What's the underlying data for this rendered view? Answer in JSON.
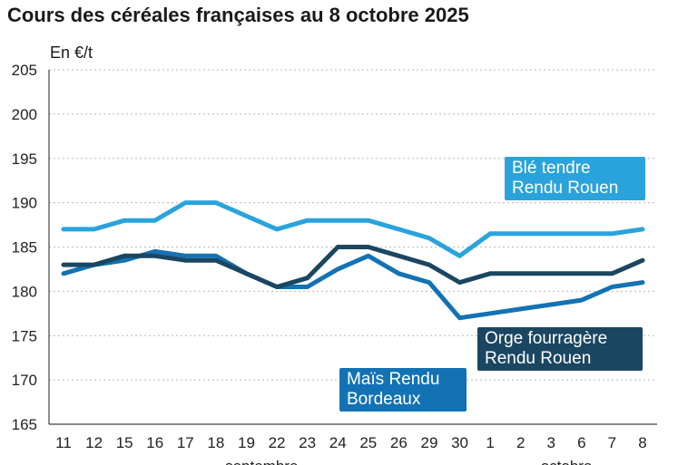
{
  "title": "Cours des céréales françaises au 8 octobre 2025",
  "chart_data": {
    "type": "line",
    "title": "Cours des céréales françaises au 8 octobre 2025",
    "ylabel": "En €/t",
    "ylim": [
      165,
      205
    ],
    "yticks": [
      165,
      170,
      175,
      180,
      185,
      190,
      195,
      200,
      205
    ],
    "categories": [
      "11",
      "12",
      "15",
      "16",
      "17",
      "18",
      "19",
      "22",
      "23",
      "24",
      "25",
      "26",
      "29",
      "30",
      "1",
      "2",
      "3",
      "6",
      "7",
      "8"
    ],
    "month_labels": [
      "septembre",
      "octobre"
    ],
    "grid": "horizontal",
    "series": [
      {
        "name": "Blé tendre Rendu Rouen",
        "color": "#2aa3dc",
        "values": [
          187,
          187,
          188,
          188,
          190,
          190,
          188.5,
          187,
          188,
          188,
          188,
          187,
          186,
          184,
          186.5,
          186.5,
          186.5,
          186.5,
          186.5,
          187
        ]
      },
      {
        "name": "Orge fourragère Rendu Rouen",
        "color": "#1b4661",
        "values": [
          183,
          183,
          184,
          184,
          183.5,
          183.5,
          182,
          180.5,
          181.5,
          185,
          185,
          184,
          183,
          181,
          182,
          182,
          182,
          182,
          182,
          183.5
        ]
      },
      {
        "name": "Maïs Rendu Bordeaux",
        "color": "#1372b4",
        "values": [
          182,
          183,
          183.5,
          184.5,
          184,
          184,
          182,
          180.5,
          180.5,
          182.5,
          184,
          182,
          181,
          177,
          177.5,
          178,
          178.5,
          179,
          180.5,
          181
        ]
      }
    ]
  }
}
